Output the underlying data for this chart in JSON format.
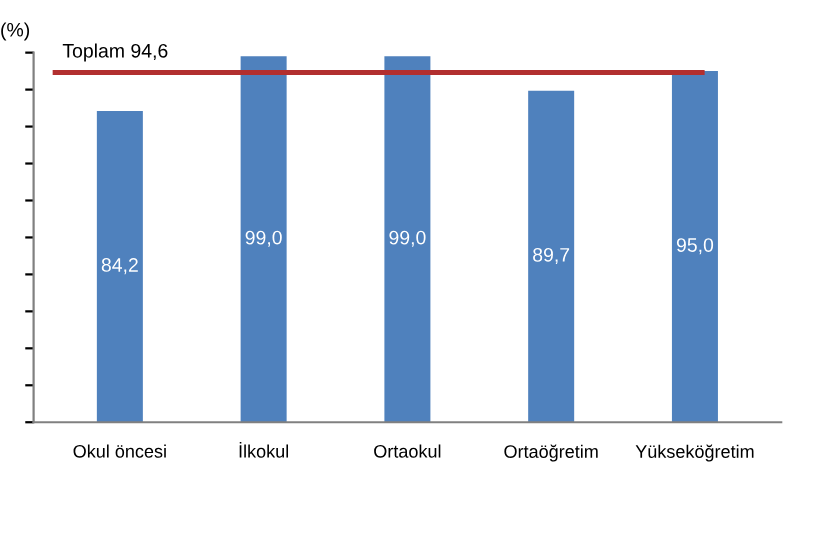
{
  "chart_data": {
    "type": "bar",
    "ylabel": "(%)",
    "categories": [
      "Okul öncesi",
      "İlkokul",
      "Ortaokul",
      "Ortaöğretim",
      "Yükseköğretim"
    ],
    "values": [
      84.2,
      99.0,
      99.0,
      89.7,
      95.0
    ],
    "color": "#4f81bd",
    "value_labels": [
      "84,2",
      "99,0",
      "99,0",
      "89,7",
      "95,0"
    ],
    "ylim": [
      0,
      100
    ],
    "yticks": [
      {
        "value": 0,
        "label": null
      },
      {
        "value": 10,
        "label": null
      },
      {
        "value": 20,
        "label": null
      },
      {
        "value": 30,
        "label": null
      },
      {
        "value": 40,
        "label": null
      },
      {
        "value": 50,
        "label": null
      },
      {
        "value": 60,
        "label": null
      },
      {
        "value": 70,
        "label": null
      },
      {
        "value": 80,
        "label": null
      },
      {
        "value": 90,
        "label": null
      },
      {
        "value": 100,
        "label": null
      }
    ],
    "tick_labels": "x",
    "grid": false,
    "ref_lines": [
      {
        "axis": "y",
        "value": 94.6,
        "label": "Toplam 94,6",
        "color": "#b22f2f",
        "line_style": "solid"
      }
    ]
  }
}
